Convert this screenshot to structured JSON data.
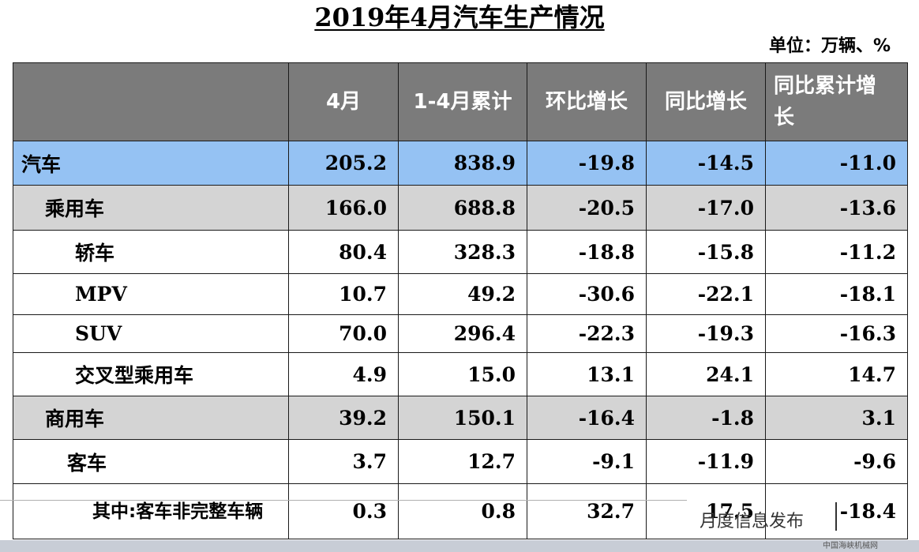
{
  "title": "2019年4月汽车生产情况",
  "unit": "单位：万辆、%",
  "columns": [
    "",
    "4月",
    "1-4月累计",
    "环比增长",
    "同比增长",
    "同比累计增长"
  ],
  "rows": [
    {
      "name": "汽车",
      "values": [
        "205.2",
        "838.9",
        "-19.8",
        "-14.5",
        "-11.0"
      ]
    },
    {
      "name": "乘用车",
      "values": [
        "166.0",
        "688.8",
        "-20.5",
        "-17.0",
        "-13.6"
      ]
    },
    {
      "name": "轿车",
      "values": [
        "80.4",
        "328.3",
        "-18.8",
        "-15.8",
        "-11.2"
      ]
    },
    {
      "name": "MPV",
      "values": [
        "10.7",
        "49.2",
        "-30.6",
        "-22.1",
        "-18.1"
      ]
    },
    {
      "name": "SUV",
      "values": [
        "70.0",
        "296.4",
        "-22.3",
        "-19.3",
        "-16.3"
      ]
    },
    {
      "name": "交叉型乘用车",
      "values": [
        "4.9",
        "15.0",
        "13.1",
        "24.1",
        "14.7"
      ]
    },
    {
      "name": "商用车",
      "values": [
        "39.2",
        "150.1",
        "-16.4",
        "-1.8",
        "3.1"
      ]
    },
    {
      "name": "客车",
      "values": [
        "3.7",
        "12.7",
        "-9.1",
        "-11.9",
        "-9.6"
      ]
    },
    {
      "name": "其中:客车非完整车辆",
      "values": [
        "0.3",
        "0.8",
        "32.7",
        "17.5",
        "-18.4"
      ]
    }
  ],
  "footer": {
    "text": "月度信息发布"
  },
  "watermark": "中国海峡机械网",
  "colors": {
    "header": "#7b7b7b",
    "highlight_blue": "#95c2f3",
    "highlight_gray": "#d4d4d4"
  }
}
